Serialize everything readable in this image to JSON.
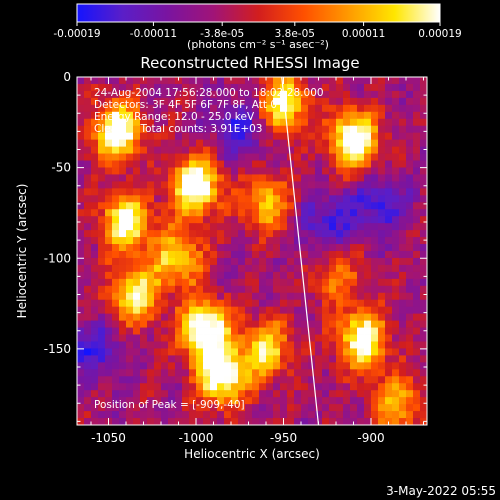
{
  "chart_data": {
    "type": "heatmap",
    "title": "Reconstructed RHESSI Image",
    "xlabel": "Heliocentric X (arcsec)",
    "ylabel": "Heliocentric Y (arcsec)",
    "xlim": [
      -1068,
      -868
    ],
    "ylim": [
      -192,
      0
    ],
    "x_ticks": [
      -1050,
      -1000,
      -950,
      -900
    ],
    "y_ticks": [
      0,
      -50,
      -100,
      -150
    ],
    "colorbar": {
      "range": [
        -0.00019,
        0.00019
      ],
      "tick_values": [
        -0.00019,
        -0.00011,
        -3.8e-05,
        3.8e-05,
        0.00011,
        0.00019
      ],
      "tick_labels": [
        "-0.00019",
        "-0.00011",
        "-3.8e-05",
        "3.8e-05",
        "0.00011",
        "0.00019"
      ],
      "unit_label": "(photons cm⁻² s⁻¹ asec⁻²)",
      "colors": [
        "#1414ff",
        "#5a1ec8",
        "#7a14a0",
        "#a01478",
        "#d21e1e",
        "#ff5000",
        "#ff9b00",
        "#ffe600",
        "#ffffff"
      ]
    },
    "annotations": [
      "24-Aug-2004 17:56:28.000 to 18:02:28.000",
      "Detectors: 3F 4F 5F 6F 7F 8F, Att 0",
      "Energy Range: 12.0 - 25.0 keV",
      "Clean     Total counts: 3.91E+03"
    ],
    "peak_label": "Position of Peak = [-909,-40]",
    "limb_line": [
      [
        -951,
        0
      ],
      [
        -930,
        -192
      ]
    ],
    "bright_regions": [
      {
        "x": -1045,
        "y": -30,
        "intensity": 1.0
      },
      {
        "x": -1040,
        "y": -80,
        "intensity": 0.9
      },
      {
        "x": -1035,
        "y": -120,
        "intensity": 0.8
      },
      {
        "x": -1000,
        "y": -60,
        "intensity": 1.0
      },
      {
        "x": -1010,
        "y": -100,
        "intensity": 0.7
      },
      {
        "x": -995,
        "y": -140,
        "intensity": 1.0
      },
      {
        "x": -985,
        "y": -165,
        "intensity": 0.95
      },
      {
        "x": -950,
        "y": -15,
        "intensity": 0.8
      },
      {
        "x": -960,
        "y": -70,
        "intensity": 0.6
      },
      {
        "x": -960,
        "y": -150,
        "intensity": 0.7
      },
      {
        "x": -910,
        "y": -35,
        "intensity": 1.0
      },
      {
        "x": -905,
        "y": -145,
        "intensity": 0.9
      },
      {
        "x": -885,
        "y": -180,
        "intensity": 0.6
      },
      {
        "x": -920,
        "y": -110,
        "intensity": 0.4
      }
    ],
    "dark_regions": [
      {
        "x": -925,
        "y": -80
      },
      {
        "x": -895,
        "y": -70
      },
      {
        "x": -1060,
        "y": -150
      },
      {
        "x": -975,
        "y": -30
      }
    ]
  },
  "footer": {
    "date": "3-May-2022 05:55"
  }
}
